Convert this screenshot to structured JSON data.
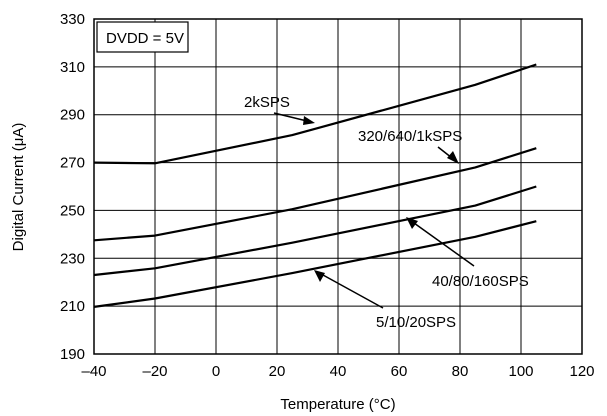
{
  "chart_data": {
    "type": "line",
    "title": "",
    "xlabel": "Temperature (°C)",
    "ylabel": "Digital Current (μA)",
    "xlim": [
      -40,
      120
    ],
    "ylim": [
      190,
      330
    ],
    "x_ticks": [
      -40,
      -20,
      0,
      20,
      40,
      60,
      80,
      100,
      120
    ],
    "x_tick_labels": [
      "–40",
      "–20",
      "0",
      "20",
      "40",
      "60",
      "80",
      "100",
      "120"
    ],
    "y_ticks": [
      190,
      210,
      230,
      250,
      270,
      290,
      310,
      330
    ],
    "y_tick_labels": [
      "190",
      "210",
      "230",
      "250",
      "270",
      "290",
      "310",
      "330"
    ],
    "grid": true,
    "legend": "none",
    "annotation": "DVDD = 5V",
    "line_color": "#000000",
    "series": [
      {
        "name": "2kSPS",
        "x": [
          -40,
          -20,
          25,
          85,
          105
        ],
        "values": [
          270.0,
          269.7,
          281.5,
          302.5,
          311.0
        ]
      },
      {
        "name": "320/640/1kSPS",
        "x": [
          -40,
          -20,
          25,
          85,
          105
        ],
        "values": [
          237.5,
          239.5,
          250.5,
          268.0,
          276.0
        ]
      },
      {
        "name": "40/80/160SPS",
        "x": [
          -40,
          -20,
          25,
          85,
          105
        ],
        "values": [
          223.0,
          225.8,
          236.5,
          252.0,
          260.0
        ]
      },
      {
        "name": "5/10/20SPS",
        "x": [
          -40,
          -20,
          25,
          85,
          105
        ],
        "values": [
          209.7,
          213.2,
          223.8,
          239.0,
          245.5
        ]
      }
    ]
  }
}
